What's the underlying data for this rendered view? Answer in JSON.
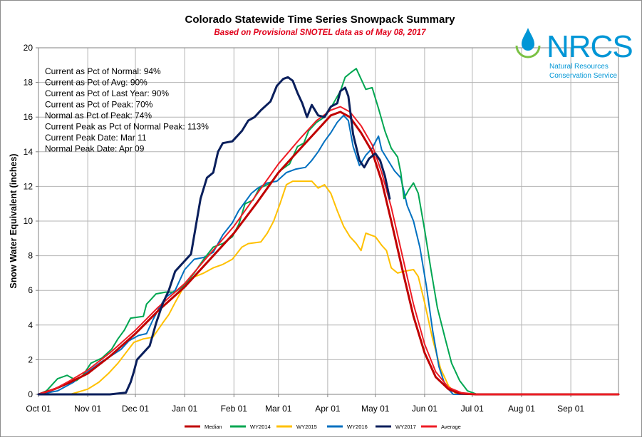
{
  "chart_data": {
    "type": "line",
    "title": "Colorado Statewide Time Series Snowpack Summary",
    "subtitle": "Based on Provisional SNOTEL data as of May 08, 2017",
    "ylabel": "Snow Water Equivalent (inches)",
    "xlabel": "",
    "ylim": [
      0,
      20
    ],
    "yticks": [
      "0",
      "2",
      "4",
      "6",
      "8",
      "10",
      "12",
      "14",
      "16",
      "18",
      "20"
    ],
    "xlim": [
      0,
      365
    ],
    "xticks": [
      {
        "day": 0,
        "label": "Oct 01"
      },
      {
        "day": 31,
        "label": "Nov 01"
      },
      {
        "day": 61,
        "label": "Dec 01"
      },
      {
        "day": 92,
        "label": "Jan 01"
      },
      {
        "day": 123,
        "label": "Feb 01"
      },
      {
        "day": 151,
        "label": "Mar 01"
      },
      {
        "day": 182,
        "label": "Apr 01"
      },
      {
        "day": 212,
        "label": "May 01"
      },
      {
        "day": 243,
        "label": "Jun 01"
      },
      {
        "day": 273,
        "label": "Jul 01"
      },
      {
        "day": 304,
        "label": "Aug 01"
      },
      {
        "day": 335,
        "label": "Sep 01"
      }
    ],
    "grid": true,
    "annotations": [
      "Current  as Pct of Normal: 94%",
      "Current  as Pct of Avg: 90%",
      "Current  as Pct of Last Year: 90%",
      "Current  as Pct of Peak: 70%",
      "Normal as Pct of Peak: 74%",
      "Current Peak as Pct of Normal Peak: 113%",
      "Current  Peak Date: Mar 11",
      "Normal Peak Date: Apr 09"
    ],
    "series": [
      {
        "name": "Median",
        "color": "#c00000",
        "width": 3,
        "points": [
          [
            0,
            0
          ],
          [
            10,
            0.3
          ],
          [
            20,
            0.7
          ],
          [
            31,
            1.2
          ],
          [
            45,
            2.2
          ],
          [
            61,
            3.5
          ],
          [
            75,
            4.8
          ],
          [
            92,
            6.2
          ],
          [
            106,
            7.6
          ],
          [
            123,
            9.3
          ],
          [
            137,
            11.0
          ],
          [
            151,
            12.8
          ],
          [
            165,
            14.2
          ],
          [
            175,
            15.2
          ],
          [
            184,
            16.1
          ],
          [
            190,
            16.3
          ],
          [
            196,
            16.0
          ],
          [
            203,
            15.1
          ],
          [
            210,
            14.0
          ],
          [
            216,
            12.3
          ],
          [
            222,
            10.0
          ],
          [
            229,
            7.2
          ],
          [
            236,
            4.5
          ],
          [
            243,
            2.4
          ],
          [
            250,
            1.0
          ],
          [
            258,
            0.3
          ],
          [
            265,
            0.05
          ],
          [
            275,
            0
          ],
          [
            365,
            0
          ]
        ]
      },
      {
        "name": "WY2014",
        "color": "#00a651",
        "width": 2,
        "points": [
          [
            0,
            0
          ],
          [
            5,
            0.2
          ],
          [
            12,
            0.9
          ],
          [
            18,
            1.1
          ],
          [
            24,
            0.8
          ],
          [
            28,
            1.1
          ],
          [
            33,
            1.8
          ],
          [
            40,
            2.1
          ],
          [
            46,
            2.6
          ],
          [
            50,
            3.2
          ],
          [
            54,
            3.7
          ],
          [
            58,
            4.4
          ],
          [
            66,
            4.5
          ],
          [
            68,
            5.2
          ],
          [
            70,
            5.4
          ],
          [
            74,
            5.8
          ],
          [
            80,
            5.9
          ],
          [
            86,
            5.9
          ],
          [
            92,
            6.3
          ],
          [
            98,
            7.0
          ],
          [
            104,
            7.8
          ],
          [
            110,
            8.5
          ],
          [
            116,
            8.7
          ],
          [
            122,
            9.1
          ],
          [
            126,
            9.8
          ],
          [
            130,
            11.0
          ],
          [
            135,
            11.2
          ],
          [
            139,
            11.9
          ],
          [
            144,
            12.1
          ],
          [
            147,
            12.3
          ],
          [
            152,
            12.9
          ],
          [
            158,
            13.3
          ],
          [
            163,
            14.3
          ],
          [
            167,
            14.5
          ],
          [
            170,
            15.2
          ],
          [
            175,
            15.7
          ],
          [
            180,
            16.0
          ],
          [
            185,
            16.7
          ],
          [
            190,
            17.5
          ],
          [
            193,
            18.3
          ],
          [
            197,
            18.6
          ],
          [
            200,
            18.8
          ],
          [
            203,
            18.2
          ],
          [
            206,
            17.6
          ],
          [
            210,
            17.7
          ],
          [
            214,
            16.5
          ],
          [
            218,
            15.2
          ],
          [
            222,
            14.2
          ],
          [
            226,
            13.7
          ],
          [
            228,
            12.8
          ],
          [
            230,
            11.3
          ],
          [
            233,
            11.8
          ],
          [
            236,
            12.2
          ],
          [
            239,
            11.6
          ],
          [
            243,
            9.5
          ],
          [
            247,
            7.2
          ],
          [
            251,
            5.0
          ],
          [
            256,
            3.2
          ],
          [
            260,
            1.8
          ],
          [
            265,
            0.8
          ],
          [
            270,
            0.2
          ],
          [
            276,
            0
          ],
          [
            365,
            0
          ]
        ]
      },
      {
        "name": "WY2015",
        "color": "#ffc000",
        "width": 2,
        "points": [
          [
            0,
            0
          ],
          [
            20,
            0
          ],
          [
            31,
            0.3
          ],
          [
            38,
            0.7
          ],
          [
            44,
            1.2
          ],
          [
            50,
            1.8
          ],
          [
            55,
            2.4
          ],
          [
            60,
            3.0
          ],
          [
            66,
            3.2
          ],
          [
            72,
            3.3
          ],
          [
            78,
            4.1
          ],
          [
            82,
            4.6
          ],
          [
            86,
            5.3
          ],
          [
            92,
            6.3
          ],
          [
            96,
            6.7
          ],
          [
            104,
            7.0
          ],
          [
            110,
            7.3
          ],
          [
            116,
            7.5
          ],
          [
            122,
            7.8
          ],
          [
            128,
            8.5
          ],
          [
            132,
            8.7
          ],
          [
            140,
            8.8
          ],
          [
            144,
            9.3
          ],
          [
            148,
            10.0
          ],
          [
            152,
            11.0
          ],
          [
            156,
            12.1
          ],
          [
            160,
            12.3
          ],
          [
            168,
            12.3
          ],
          [
            172,
            12.3
          ],
          [
            176,
            11.9
          ],
          [
            180,
            12.1
          ],
          [
            184,
            11.6
          ],
          [
            188,
            10.6
          ],
          [
            192,
            9.7
          ],
          [
            196,
            9.1
          ],
          [
            200,
            8.7
          ],
          [
            203,
            8.3
          ],
          [
            206,
            9.3
          ],
          [
            212,
            9.1
          ],
          [
            216,
            8.6
          ],
          [
            219,
            8.3
          ],
          [
            222,
            7.3
          ],
          [
            226,
            7.0
          ],
          [
            230,
            7.1
          ],
          [
            236,
            7.2
          ],
          [
            239,
            6.8
          ],
          [
            243,
            5.3
          ],
          [
            248,
            3.2
          ],
          [
            253,
            1.5
          ],
          [
            258,
            0.5
          ],
          [
            263,
            0
          ],
          [
            365,
            0
          ]
        ]
      },
      {
        "name": "WY2016",
        "color": "#0070c0",
        "width": 2,
        "points": [
          [
            0,
            0
          ],
          [
            12,
            0.2
          ],
          [
            22,
            0.7
          ],
          [
            31,
            1.3
          ],
          [
            40,
            1.9
          ],
          [
            47,
            2.3
          ],
          [
            52,
            2.6
          ],
          [
            57,
            3.1
          ],
          [
            63,
            3.4
          ],
          [
            68,
            3.5
          ],
          [
            72,
            4.3
          ],
          [
            76,
            5.0
          ],
          [
            80,
            5.6
          ],
          [
            86,
            6.0
          ],
          [
            92,
            7.2
          ],
          [
            98,
            7.8
          ],
          [
            104,
            7.9
          ],
          [
            110,
            8.2
          ],
          [
            116,
            9.2
          ],
          [
            122,
            9.9
          ],
          [
            126,
            10.6
          ],
          [
            130,
            11.1
          ],
          [
            134,
            11.6
          ],
          [
            138,
            11.9
          ],
          [
            144,
            12.2
          ],
          [
            150,
            12.3
          ],
          [
            156,
            12.8
          ],
          [
            162,
            13.0
          ],
          [
            168,
            13.1
          ],
          [
            172,
            13.5
          ],
          [
            176,
            14.0
          ],
          [
            180,
            14.6
          ],
          [
            184,
            15.1
          ],
          [
            188,
            15.7
          ],
          [
            192,
            16.1
          ],
          [
            195,
            15.8
          ],
          [
            198,
            14.3
          ],
          [
            202,
            13.2
          ],
          [
            206,
            13.8
          ],
          [
            210,
            14.2
          ],
          [
            214,
            14.9
          ],
          [
            216,
            14.1
          ],
          [
            220,
            13.5
          ],
          [
            224,
            12.9
          ],
          [
            228,
            12.5
          ],
          [
            232,
            10.9
          ],
          [
            236,
            10.0
          ],
          [
            240,
            8.5
          ],
          [
            244,
            6.3
          ],
          [
            248,
            3.7
          ],
          [
            252,
            1.6
          ],
          [
            256,
            0.5
          ],
          [
            261,
            0
          ],
          [
            365,
            0
          ]
        ]
      },
      {
        "name": "WY2017",
        "color": "#0a1f5c",
        "width": 3,
        "points": [
          [
            0,
            0
          ],
          [
            45,
            0
          ],
          [
            55,
            0.1
          ],
          [
            58,
            0.7
          ],
          [
            60,
            1.3
          ],
          [
            62,
            2.0
          ],
          [
            66,
            2.4
          ],
          [
            70,
            2.8
          ],
          [
            74,
            4.1
          ],
          [
            78,
            5.2
          ],
          [
            82,
            6.0
          ],
          [
            86,
            7.1
          ],
          [
            89,
            7.4
          ],
          [
            92,
            7.7
          ],
          [
            96,
            8.1
          ],
          [
            99,
            9.7
          ],
          [
            102,
            11.3
          ],
          [
            106,
            12.5
          ],
          [
            110,
            12.8
          ],
          [
            113,
            14.0
          ],
          [
            116,
            14.5
          ],
          [
            122,
            14.6
          ],
          [
            128,
            15.2
          ],
          [
            132,
            15.8
          ],
          [
            136,
            16.0
          ],
          [
            140,
            16.4
          ],
          [
            146,
            16.9
          ],
          [
            150,
            17.8
          ],
          [
            154,
            18.2
          ],
          [
            157,
            18.3
          ],
          [
            160,
            18.1
          ],
          [
            163,
            17.4
          ],
          [
            166,
            16.8
          ],
          [
            169,
            16.0
          ],
          [
            172,
            16.7
          ],
          [
            176,
            16.1
          ],
          [
            180,
            16.0
          ],
          [
            184,
            16.6
          ],
          [
            188,
            16.8
          ],
          [
            190,
            17.5
          ],
          [
            193,
            17.7
          ],
          [
            195,
            17.2
          ],
          [
            198,
            15.0
          ],
          [
            202,
            13.5
          ],
          [
            205,
            13.1
          ],
          [
            208,
            13.6
          ],
          [
            212,
            13.9
          ],
          [
            215,
            13.5
          ],
          [
            218,
            12.6
          ],
          [
            221,
            11.3
          ]
        ]
      },
      {
        "name": "Average",
        "color": "#ee1c25",
        "width": 2,
        "points": [
          [
            0,
            0
          ],
          [
            10,
            0.3
          ],
          [
            20,
            0.8
          ],
          [
            31,
            1.4
          ],
          [
            45,
            2.4
          ],
          [
            61,
            3.7
          ],
          [
            75,
            5.0
          ],
          [
            92,
            6.4
          ],
          [
            106,
            7.9
          ],
          [
            123,
            9.7
          ],
          [
            137,
            11.5
          ],
          [
            151,
            13.3
          ],
          [
            165,
            14.8
          ],
          [
            175,
            15.8
          ],
          [
            184,
            16.4
          ],
          [
            190,
            16.6
          ],
          [
            196,
            16.3
          ],
          [
            203,
            15.5
          ],
          [
            210,
            14.4
          ],
          [
            216,
            12.8
          ],
          [
            222,
            10.8
          ],
          [
            229,
            8.0
          ],
          [
            236,
            5.2
          ],
          [
            243,
            2.9
          ],
          [
            250,
            1.3
          ],
          [
            258,
            0.4
          ],
          [
            266,
            0.1
          ],
          [
            276,
            0
          ],
          [
            365,
            0
          ]
        ]
      }
    ]
  },
  "logo": {
    "text": "NRCS",
    "line1": "Natural Resources",
    "line2": "Conservation Service",
    "color": "#0096d6"
  },
  "legend": {
    "items": [
      "Median",
      "WY2014",
      "WY2015",
      "WY2016",
      "WY2017",
      "Average"
    ]
  }
}
